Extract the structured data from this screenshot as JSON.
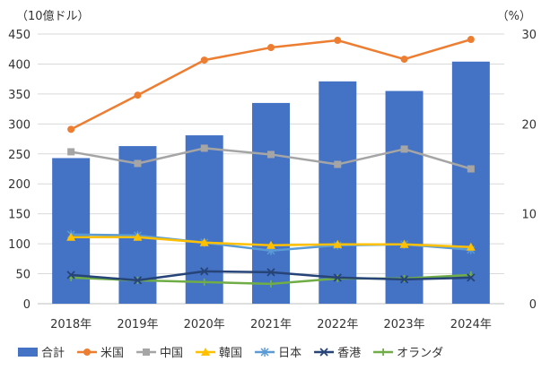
{
  "chart_data": {
    "type": "bar",
    "categories": [
      "2018年",
      "2019年",
      "2020年",
      "2021年",
      "2022年",
      "2023年",
      "2024年"
    ],
    "left_axis": {
      "unit_label": "（10億ドル）",
      "ticks": [
        0,
        50,
        100,
        150,
        200,
        250,
        300,
        350,
        400,
        450
      ],
      "ylim": [
        0,
        450
      ]
    },
    "right_axis": {
      "unit_label": "（%）",
      "ticks": [
        0,
        10,
        20,
        30
      ],
      "ylim": [
        0,
        30
      ]
    },
    "grid": true,
    "legend_position": "bottom",
    "bar_series": {
      "name": "合計",
      "axis": "left",
      "color": "#4472c4",
      "values": [
        243,
        263,
        281,
        335,
        371,
        355,
        404
      ]
    },
    "line_series": [
      {
        "name": "米国",
        "axis": "right",
        "color": "#ed7d31",
        "marker": "circle",
        "values": [
          19.4,
          23.2,
          27.1,
          28.5,
          29.3,
          27.2,
          29.4
        ]
      },
      {
        "name": "中国",
        "axis": "right",
        "color": "#a5a5a5",
        "marker": "square",
        "values": [
          16.9,
          15.6,
          17.3,
          16.6,
          15.5,
          17.2,
          15.0
        ]
      },
      {
        "name": "韓国",
        "axis": "right",
        "color": "#ffc000",
        "marker": "triangle",
        "values": [
          7.4,
          7.4,
          6.8,
          6.5,
          6.6,
          6.6,
          6.3
        ]
      },
      {
        "name": "日本",
        "axis": "right",
        "color": "#5b9bd5",
        "marker": "asterisk",
        "values": [
          7.7,
          7.6,
          6.8,
          5.9,
          6.5,
          6.6,
          6.0
        ]
      },
      {
        "name": "香港",
        "axis": "right",
        "color": "#264478",
        "marker": "x",
        "values": [
          3.2,
          2.6,
          3.6,
          3.5,
          2.9,
          2.7,
          2.9
        ]
      },
      {
        "name": "オランダ",
        "axis": "right",
        "color": "#70ad47",
        "marker": "plus",
        "values": [
          2.9,
          2.6,
          2.4,
          2.2,
          2.8,
          2.8,
          3.2
        ]
      }
    ]
  }
}
